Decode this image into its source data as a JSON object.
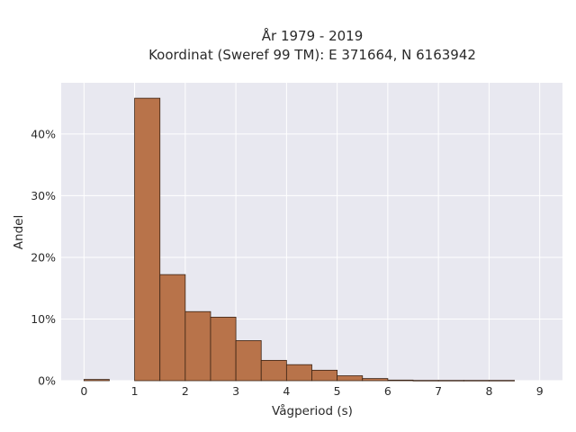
{
  "chart_data": {
    "type": "bar",
    "title_line1": "År 1979 - 2019",
    "title_line2": "Koordinat (Sweref 99 TM): E 371664, N 6163942",
    "xlabel": "Vågperiod (s)",
    "ylabel": "Andel",
    "xlim": [
      -0.45,
      9.45
    ],
    "ylim": [
      0,
      48.3
    ],
    "x_ticks": [
      0,
      1,
      2,
      3,
      4,
      5,
      6,
      7,
      8,
      9
    ],
    "y_ticks": [
      0,
      10,
      20,
      30,
      40
    ],
    "y_tick_labels": [
      "0%",
      "10%",
      "20%",
      "30%",
      "40%"
    ],
    "grid": true,
    "bar_color": "#b8734a",
    "bar_edge_color": "#3b2314",
    "plot_background": "#e8e8f0",
    "bins": [
      {
        "x0": 0.0,
        "x1": 0.5,
        "value": 0.2
      },
      {
        "x0": 1.0,
        "x1": 1.5,
        "value": 45.8
      },
      {
        "x0": 1.5,
        "x1": 2.0,
        "value": 17.2
      },
      {
        "x0": 2.0,
        "x1": 2.5,
        "value": 11.2
      },
      {
        "x0": 2.5,
        "x1": 3.0,
        "value": 10.3
      },
      {
        "x0": 3.0,
        "x1": 3.5,
        "value": 6.5
      },
      {
        "x0": 3.5,
        "x1": 4.0,
        "value": 3.3
      },
      {
        "x0": 4.0,
        "x1": 4.5,
        "value": 2.6
      },
      {
        "x0": 4.5,
        "x1": 5.0,
        "value": 1.7
      },
      {
        "x0": 5.0,
        "x1": 5.5,
        "value": 0.8
      },
      {
        "x0": 5.5,
        "x1": 6.0,
        "value": 0.35
      },
      {
        "x0": 6.0,
        "x1": 6.5,
        "value": 0.1
      },
      {
        "x0": 6.5,
        "x1": 7.0,
        "value": 0.05
      },
      {
        "x0": 7.0,
        "x1": 7.5,
        "value": 0.05
      },
      {
        "x0": 7.5,
        "x1": 8.0,
        "value": 0.05
      },
      {
        "x0": 8.0,
        "x1": 8.5,
        "value": 0.05
      }
    ]
  }
}
